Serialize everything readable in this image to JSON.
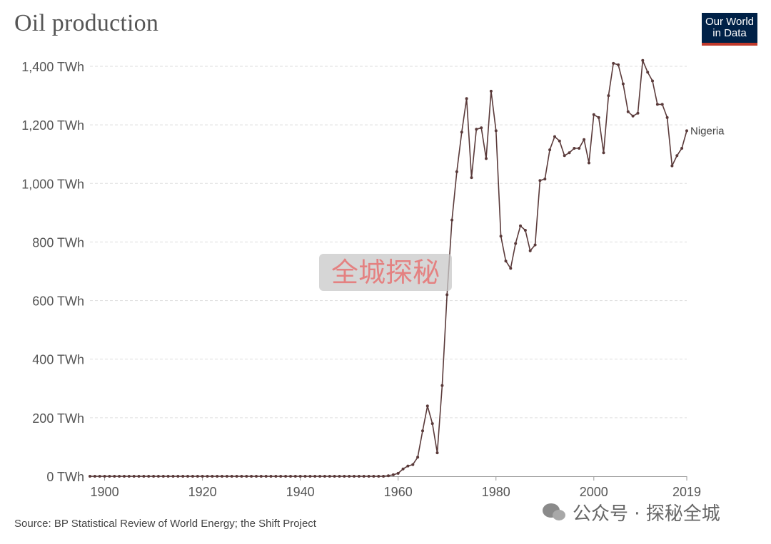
{
  "title": "Oil production",
  "logo": {
    "line1": "Our World",
    "line2": "in Data"
  },
  "source": "Source: BP Statistical Review of World Energy; the Shift Project",
  "wechat_watermark": "公众号 · 探秘全城",
  "center_watermark": "全城探秘",
  "colors": {
    "line": "#5a3a3a",
    "grid": "#dddddd",
    "logo_bg": "#002147",
    "logo_accent": "#c0392b"
  },
  "chart_data": {
    "type": "line",
    "ylabel": "",
    "xlabel": "",
    "xlim": [
      1897,
      2019
    ],
    "ylim": [
      0,
      1400
    ],
    "y_ticks": [
      {
        "value": 0,
        "label": "0 TWh"
      },
      {
        "value": 200,
        "label": "200 TWh"
      },
      {
        "value": 400,
        "label": "400 TWh"
      },
      {
        "value": 600,
        "label": "600 TWh"
      },
      {
        "value": 800,
        "label": "800 TWh"
      },
      {
        "value": 1000,
        "label": "1,000 TWh"
      },
      {
        "value": 1200,
        "label": "1,200 TWh"
      },
      {
        "value": 1400,
        "label": "1,400 TWh"
      }
    ],
    "x_ticks": [
      {
        "value": 1900,
        "label": "1900"
      },
      {
        "value": 1920,
        "label": "1920"
      },
      {
        "value": 1940,
        "label": "1940"
      },
      {
        "value": 1960,
        "label": "1960"
      },
      {
        "value": 1980,
        "label": "1980"
      },
      {
        "value": 2000,
        "label": "2000"
      },
      {
        "value": 2019,
        "label": "2019"
      }
    ],
    "series": [
      {
        "name": "Nigeria",
        "zero_range": [
          1897,
          1957
        ],
        "points": [
          [
            1958,
            2
          ],
          [
            1959,
            5
          ],
          [
            1960,
            10
          ],
          [
            1961,
            25
          ],
          [
            1962,
            35
          ],
          [
            1963,
            40
          ],
          [
            1964,
            65
          ],
          [
            1965,
            155
          ],
          [
            1966,
            240
          ],
          [
            1967,
            180
          ],
          [
            1968,
            80
          ],
          [
            1969,
            310
          ],
          [
            1970,
            620
          ],
          [
            1971,
            875
          ],
          [
            1972,
            1040
          ],
          [
            1973,
            1175
          ],
          [
            1974,
            1290
          ],
          [
            1975,
            1020
          ],
          [
            1976,
            1185
          ],
          [
            1977,
            1190
          ],
          [
            1978,
            1085
          ],
          [
            1979,
            1315
          ],
          [
            1980,
            1180
          ],
          [
            1981,
            820
          ],
          [
            1982,
            735
          ],
          [
            1983,
            710
          ],
          [
            1984,
            795
          ],
          [
            1985,
            855
          ],
          [
            1986,
            840
          ],
          [
            1987,
            770
          ],
          [
            1988,
            790
          ],
          [
            1989,
            1010
          ],
          [
            1990,
            1015
          ],
          [
            1991,
            1115
          ],
          [
            1992,
            1160
          ],
          [
            1993,
            1145
          ],
          [
            1994,
            1095
          ],
          [
            1995,
            1105
          ],
          [
            1996,
            1120
          ],
          [
            1997,
            1120
          ],
          [
            1998,
            1150
          ],
          [
            1999,
            1070
          ],
          [
            2000,
            1235
          ],
          [
            2001,
            1225
          ],
          [
            2002,
            1105
          ],
          [
            2003,
            1300
          ],
          [
            2004,
            1410
          ],
          [
            2005,
            1405
          ],
          [
            2006,
            1340
          ],
          [
            2007,
            1245
          ],
          [
            2008,
            1230
          ],
          [
            2009,
            1240
          ],
          [
            2010,
            1420
          ],
          [
            2011,
            1380
          ],
          [
            2012,
            1350
          ],
          [
            2013,
            1270
          ],
          [
            2014,
            1270
          ],
          [
            2015,
            1225
          ],
          [
            2016,
            1060
          ],
          [
            2017,
            1095
          ],
          [
            2018,
            1120
          ],
          [
            2019,
            1180
          ]
        ]
      }
    ]
  }
}
